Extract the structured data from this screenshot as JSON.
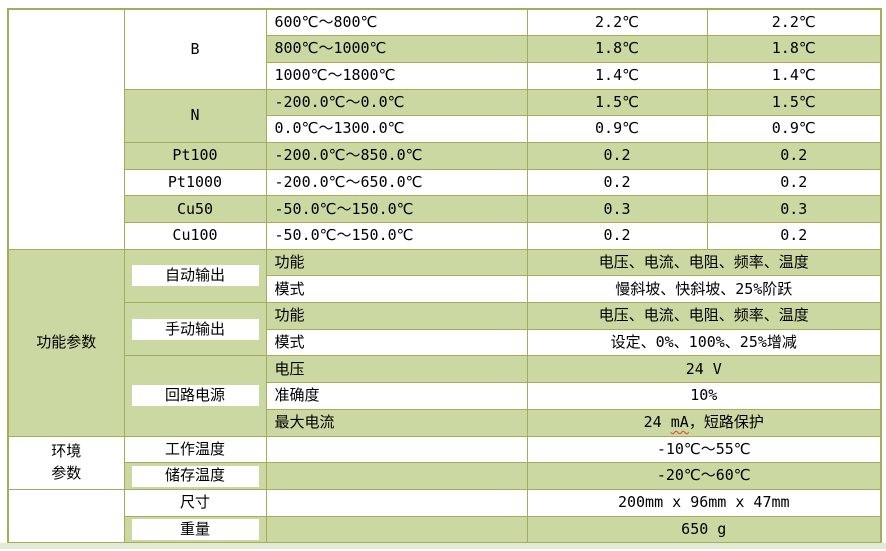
{
  "colors": {
    "row_green": "#cbd8a2",
    "grid_border": "#a4ad5b",
    "exterior_band": "#e4ebd4",
    "text": "#000000",
    "spellcheck_underline": "#e03b2f"
  },
  "sensor_section": {
    "groups": [
      {
        "label": "B",
        "rows": [
          {
            "range": "600℃～800℃",
            "v1": "2.2℃",
            "v2": "2.2℃"
          },
          {
            "range": "800℃～1000℃",
            "v1": "1.8℃",
            "v2": "1.8℃"
          },
          {
            "range": "1000℃～1800℃",
            "v1": "1.4℃",
            "v2": "1.4℃"
          }
        ]
      },
      {
        "label": "N",
        "rows": [
          {
            "range": "-200.0℃～0.0℃",
            "v1": "1.5℃",
            "v2": "1.5℃"
          },
          {
            "range": "0.0℃～1300.0℃",
            "v1": "0.9℃",
            "v2": "0.9℃"
          }
        ]
      },
      {
        "label": "Pt100",
        "rows": [
          {
            "range": "-200.0℃～850.0℃",
            "v1": "0.2",
            "v2": "0.2"
          }
        ]
      },
      {
        "label": "Pt1000",
        "rows": [
          {
            "range": "-200.0℃～650.0℃",
            "v1": "0.2",
            "v2": "0.2"
          }
        ]
      },
      {
        "label": "Cu50",
        "rows": [
          {
            "range": "-50.0℃～150.0℃",
            "v1": "0.3",
            "v2": "0.3"
          }
        ]
      },
      {
        "label": "Cu100",
        "rows": [
          {
            "range": "-50.0℃～150.0℃",
            "v1": "0.2",
            "v2": "0.2"
          }
        ]
      }
    ]
  },
  "function_section": {
    "title": "功能参数",
    "groups": [
      {
        "label": "自动输出",
        "rows": [
          {
            "param": "功能",
            "value": "电压、电流、电阻、频率、温度"
          },
          {
            "param": "模式",
            "value": "慢斜坡、快斜坡、25%阶跃"
          }
        ]
      },
      {
        "label": "手动输出",
        "rows": [
          {
            "param": "功能",
            "value": "电压、电流、电阻、频率、温度"
          },
          {
            "param": "模式",
            "value": "设定、0%、100%、25%增减"
          }
        ]
      },
      {
        "label": "回路电源",
        "rows": [
          {
            "param": "电压",
            "value": "24 V"
          },
          {
            "param": "准确度",
            "value": "10%"
          },
          {
            "param": "最大电流",
            "value_pre": "24 ",
            "value_flagged": "mA",
            "value_post": "，短路保护"
          }
        ]
      }
    ]
  },
  "environment_section": {
    "title_line1": "环境",
    "title_line2": "参数",
    "rows": [
      {
        "label": "工作温度",
        "value": "-10℃～55℃"
      },
      {
        "label": "储存温度",
        "value": "-20℃～60℃"
      }
    ]
  },
  "physical_section": {
    "rows": [
      {
        "label": "尺寸",
        "value": "200mm x 96mm x 47mm"
      },
      {
        "label": "重量",
        "value": "650 g"
      }
    ]
  }
}
